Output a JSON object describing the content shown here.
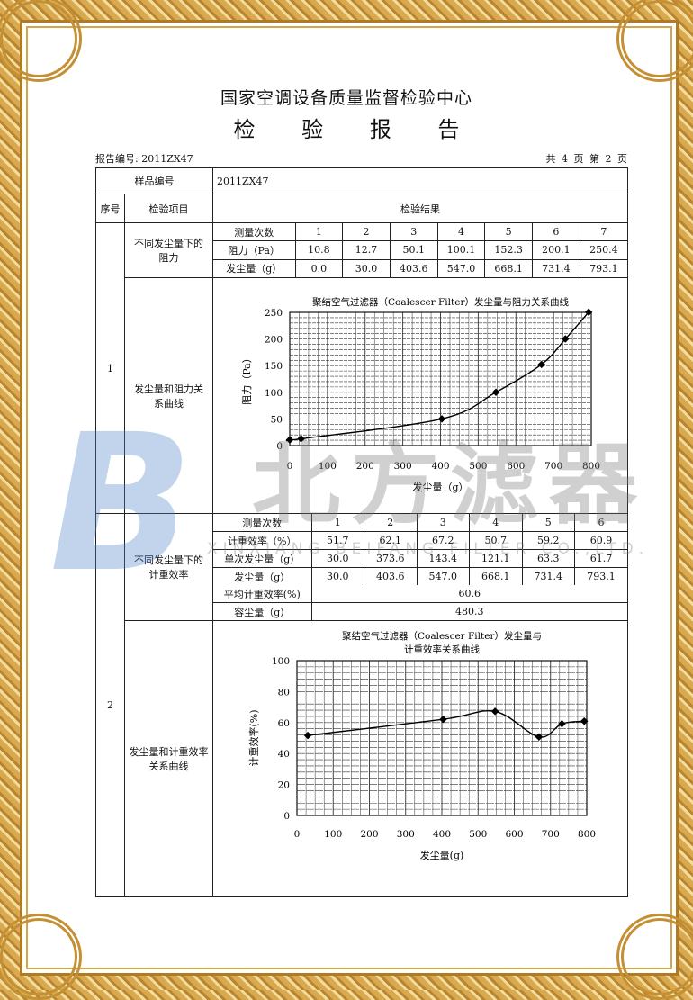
{
  "header": {
    "org": "国家空调设备质量监督检验中心",
    "title": "检 验 报 告",
    "report_no": "报告编号: 2011ZX47",
    "page_info": "共 4 页 第 2 页"
  },
  "table": {
    "sample_label": "样品编号",
    "sample_value": "2011ZX47",
    "col_seq": "序号",
    "col_item": "检验项目",
    "col_result": "检验结果",
    "sections": [
      {
        "seq": "1",
        "items": [
          {
            "name": "不同发尘量下的阻力",
            "rows": [
              [
                "测量次数",
                "1",
                "2",
                "3",
                "4",
                "5",
                "6",
                "7"
              ],
              [
                "阻力（Pa）",
                "10.8",
                "12.7",
                "50.1",
                "100.1",
                "152.3",
                "200.1",
                "250.4"
              ],
              [
                "发尘量（g）",
                "0.0",
                "30.0",
                "403.6",
                "547.0",
                "668.1",
                "731.4",
                "793.1"
              ]
            ]
          },
          {
            "name": "发尘量和阻力关系曲线"
          }
        ]
      },
      {
        "seq": "2",
        "items": [
          {
            "name": "不同发尘量下的计重效率",
            "rows": [
              [
                "测量次数",
                "1",
                "2",
                "3",
                "4",
                "5",
                "6"
              ],
              [
                "计重效率（%）",
                "51.7",
                "62.1",
                "67.2",
                "50.7",
                "59.2",
                "60.9"
              ],
              [
                "单次发尘量（g）",
                "30.0",
                "373.6",
                "143.4",
                "121.1",
                "63.3",
                "61.7"
              ],
              [
                "发尘量（g）",
                "30.0",
                "403.6",
                "547.0",
                "668.1",
                "731.4",
                "793.1"
              ]
            ],
            "avg_label": "平均计重效率(%)",
            "avg_value": "60.6",
            "cap_label": "容尘量（g）",
            "cap_value": "480.3"
          },
          {
            "name": "发尘量和计重效率关系曲线"
          }
        ]
      }
    ]
  },
  "chart_data": [
    {
      "type": "line",
      "title": "聚结空气过滤器（Coalescer Filter）发尘量与阻力关系曲线",
      "xlabel": "发尘量（g）",
      "ylabel": "阻力（Pa）",
      "xlim": [
        0,
        800
      ],
      "ylim": [
        0,
        250
      ],
      "xticks": [
        "0",
        "100",
        "200",
        "300",
        "400",
        "500",
        "600",
        "700",
        "800"
      ],
      "yticks": [
        "0",
        "50",
        "100",
        "150",
        "200",
        "250"
      ],
      "grid": true,
      "x": [
        0.0,
        30.0,
        403.6,
        547.0,
        668.1,
        731.4,
        793.1
      ],
      "y": [
        10.8,
        12.7,
        50.1,
        100.1,
        152.3,
        200.1,
        250.4
      ]
    },
    {
      "type": "line",
      "title": "聚结空气过滤器（Coalescer Filter）发尘量与",
      "title2": "计重效率关系曲线",
      "xlabel": "发尘量(g)",
      "ylabel": "计重效率(%)",
      "xlim": [
        0,
        800
      ],
      "ylim": [
        0,
        100
      ],
      "xticks": [
        "0",
        "100",
        "200",
        "300",
        "400",
        "500",
        "600",
        "700",
        "800"
      ],
      "yticks": [
        "0",
        "20",
        "40",
        "60",
        "80",
        "100"
      ],
      "grid": true,
      "x": [
        30.0,
        403.6,
        547.0,
        668.1,
        731.4,
        793.1
      ],
      "y": [
        51.7,
        62.1,
        67.2,
        50.7,
        59.2,
        60.9
      ]
    }
  ],
  "watermark": {
    "logo": "B",
    "name": "北方滤器",
    "company": "XINXIANG BEIFANG FILTER CO.,LTD."
  },
  "colors": {
    "frame_gold": "#c58f34",
    "watermark_blue": "#5082c8"
  }
}
